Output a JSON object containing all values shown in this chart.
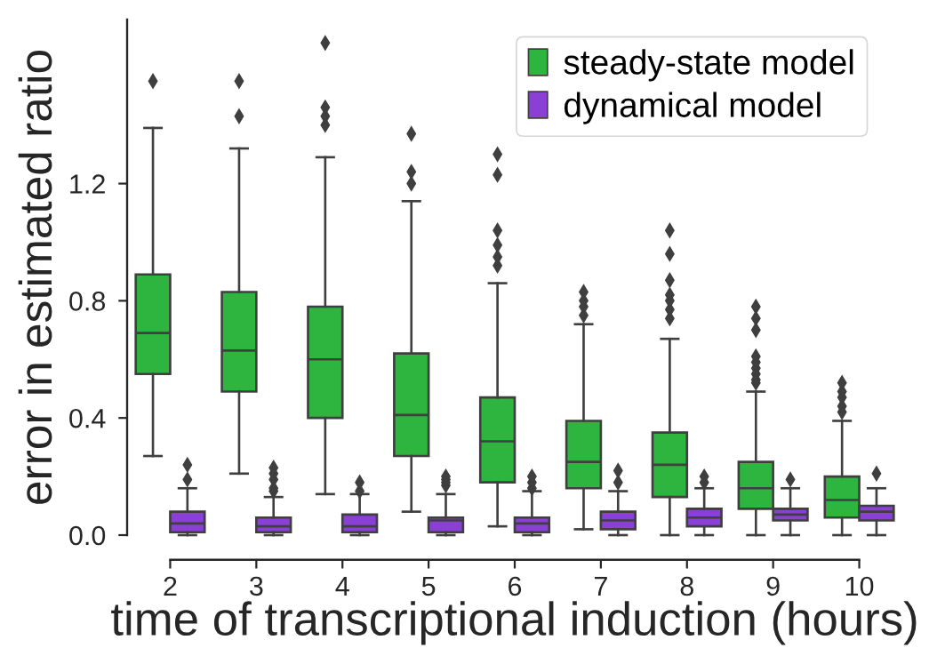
{
  "chart_data": {
    "type": "box",
    "xlabel": "time of transcriptional induction (hours)",
    "ylabel": "error in estimated ratio",
    "categories": [
      "2",
      "3",
      "4",
      "5",
      "6",
      "7",
      "8",
      "9",
      "10"
    ],
    "ylim": [
      0,
      1.76
    ],
    "yticks": [
      {
        "value": 0,
        "label": "0.0"
      },
      0.4,
      0.8,
      1.2
    ],
    "grid": false,
    "legend": "top right",
    "marker": "diamond",
    "series": [
      {
        "name": "steady-state model",
        "color": "#2eb540",
        "boxes": [
          {
            "low": 0.27,
            "q1": 0.55,
            "median": 0.69,
            "q3": 0.89,
            "high": 1.39,
            "outliers": [
              1.55
            ]
          },
          {
            "low": 0.21,
            "q1": 0.49,
            "median": 0.63,
            "q3": 0.83,
            "high": 1.32,
            "outliers": [
              1.43,
              1.55
            ]
          },
          {
            "low": 0.14,
            "q1": 0.4,
            "median": 0.6,
            "q3": 0.78,
            "high": 1.29,
            "outliers": [
              1.4,
              1.43,
              1.46,
              1.68
            ]
          },
          {
            "low": 0.08,
            "q1": 0.27,
            "median": 0.41,
            "q3": 0.62,
            "high": 1.14,
            "outliers": [
              1.2,
              1.24,
              1.37
            ]
          },
          {
            "low": 0.03,
            "q1": 0.18,
            "median": 0.32,
            "q3": 0.47,
            "high": 0.86,
            "outliers": [
              0.92,
              0.95,
              0.99,
              1.04,
              1.23,
              1.3
            ]
          },
          {
            "low": 0.02,
            "q1": 0.16,
            "median": 0.25,
            "q3": 0.39,
            "high": 0.72,
            "outliers": [
              0.75,
              0.78,
              0.8,
              0.83
            ]
          },
          {
            "low": 0.0,
            "q1": 0.13,
            "median": 0.24,
            "q3": 0.35,
            "high": 0.67,
            "outliers": [
              0.74,
              0.77,
              0.8,
              0.82,
              0.87,
              0.96,
              1.04
            ]
          },
          {
            "low": 0.0,
            "q1": 0.09,
            "median": 0.16,
            "q3": 0.25,
            "high": 0.49,
            "outliers": [
              0.52,
              0.53,
              0.55,
              0.57,
              0.59,
              0.61,
              0.7,
              0.74,
              0.78
            ]
          },
          {
            "low": 0.0,
            "q1": 0.06,
            "median": 0.12,
            "q3": 0.2,
            "high": 0.39,
            "outliers": [
              0.42,
              0.44,
              0.47,
              0.49,
              0.52
            ]
          }
        ]
      },
      {
        "name": "dynamical model",
        "color": "#8a40d4",
        "boxes": [
          {
            "low": 0.0,
            "q1": 0.01,
            "median": 0.04,
            "q3": 0.08,
            "high": 0.16,
            "outliers": [
              0.19,
              0.24
            ]
          },
          {
            "low": 0.0,
            "q1": 0.01,
            "median": 0.03,
            "q3": 0.06,
            "high": 0.13,
            "outliers": [
              0.15,
              0.16,
              0.19,
              0.21,
              0.23
            ]
          },
          {
            "low": 0.0,
            "q1": 0.01,
            "median": 0.03,
            "q3": 0.07,
            "high": 0.14,
            "outliers": [
              0.15,
              0.18
            ]
          },
          {
            "low": 0.0,
            "q1": 0.01,
            "median": 0.05,
            "q3": 0.06,
            "high": 0.14,
            "outliers": [
              0.17,
              0.18,
              0.19,
              0.2
            ]
          },
          {
            "low": 0.0,
            "q1": 0.01,
            "median": 0.04,
            "q3": 0.06,
            "high": 0.15,
            "outliers": [
              0.16,
              0.18,
              0.2
            ]
          },
          {
            "low": 0.0,
            "q1": 0.02,
            "median": 0.05,
            "q3": 0.08,
            "high": 0.15,
            "outliers": [
              0.18,
              0.22
            ]
          },
          {
            "low": 0.0,
            "q1": 0.03,
            "median": 0.06,
            "q3": 0.09,
            "high": 0.16,
            "outliers": [
              0.18,
              0.2
            ]
          },
          {
            "low": 0.0,
            "q1": 0.05,
            "median": 0.07,
            "q3": 0.09,
            "high": 0.16,
            "outliers": [
              0.19
            ]
          },
          {
            "low": 0.0,
            "q1": 0.05,
            "median": 0.08,
            "q3": 0.1,
            "high": 0.16,
            "outliers": [
              0.21
            ]
          }
        ]
      }
    ]
  }
}
